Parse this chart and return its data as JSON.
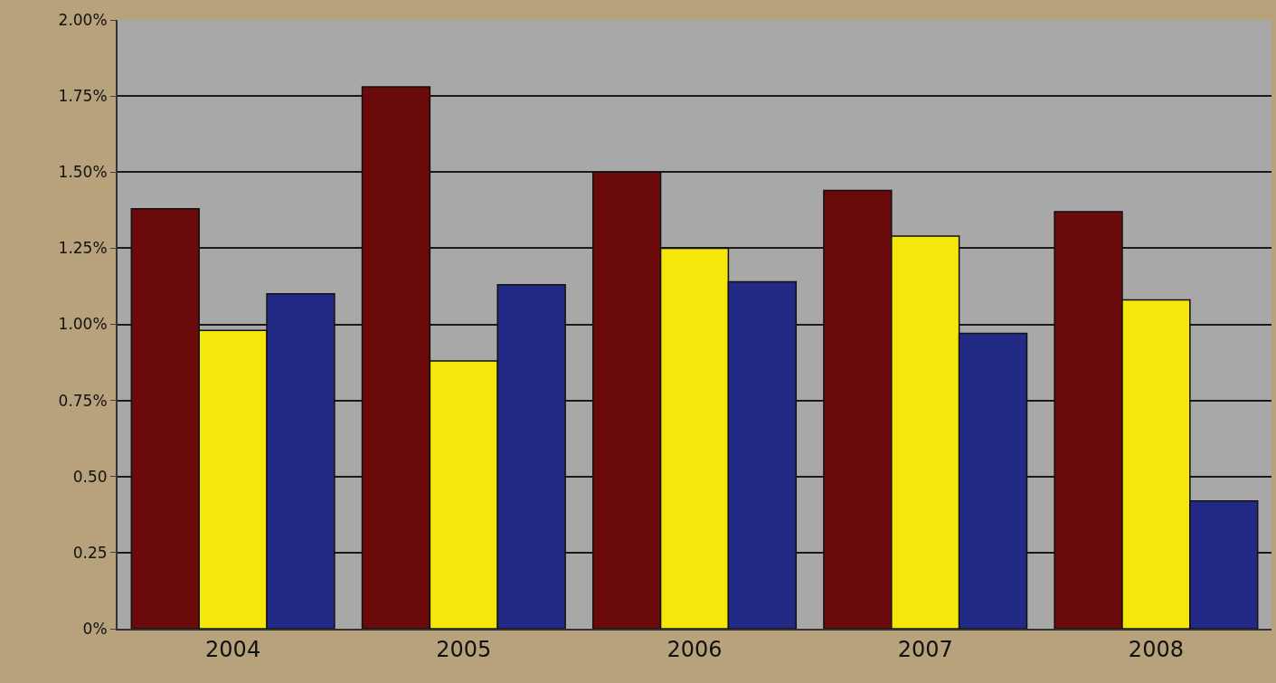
{
  "chart_data": {
    "type": "bar",
    "categories": [
      "2004",
      "2005",
      "2006",
      "2007",
      "2008"
    ],
    "series": [
      {
        "color": "#6b0a0a",
        "values": [
          1.38,
          1.78,
          1.5,
          1.44,
          1.37
        ]
      },
      {
        "color": "#f5e60c",
        "values": [
          0.98,
          0.88,
          1.25,
          1.29,
          1.08
        ]
      },
      {
        "color": "#232a85",
        "values": [
          1.1,
          1.13,
          1.14,
          0.97,
          0.42
        ]
      }
    ],
    "ylim": [
      0,
      2
    ],
    "yticks": [
      {
        "value": 0,
        "label": "0%"
      },
      {
        "value": 0.25,
        "label": "0.25"
      },
      {
        "value": 0.5,
        "label": "0.50"
      },
      {
        "value": 0.75,
        "label": "0.75%"
      },
      {
        "value": 1,
        "label": "1.00%"
      },
      {
        "value": 1.25,
        "label": "1.25%"
      },
      {
        "value": 1.5,
        "label": "1.50%"
      },
      {
        "value": 1.75,
        "label": "1.75%"
      },
      {
        "value": 2,
        "label": "2.00%"
      }
    ],
    "grid": "y"
  }
}
